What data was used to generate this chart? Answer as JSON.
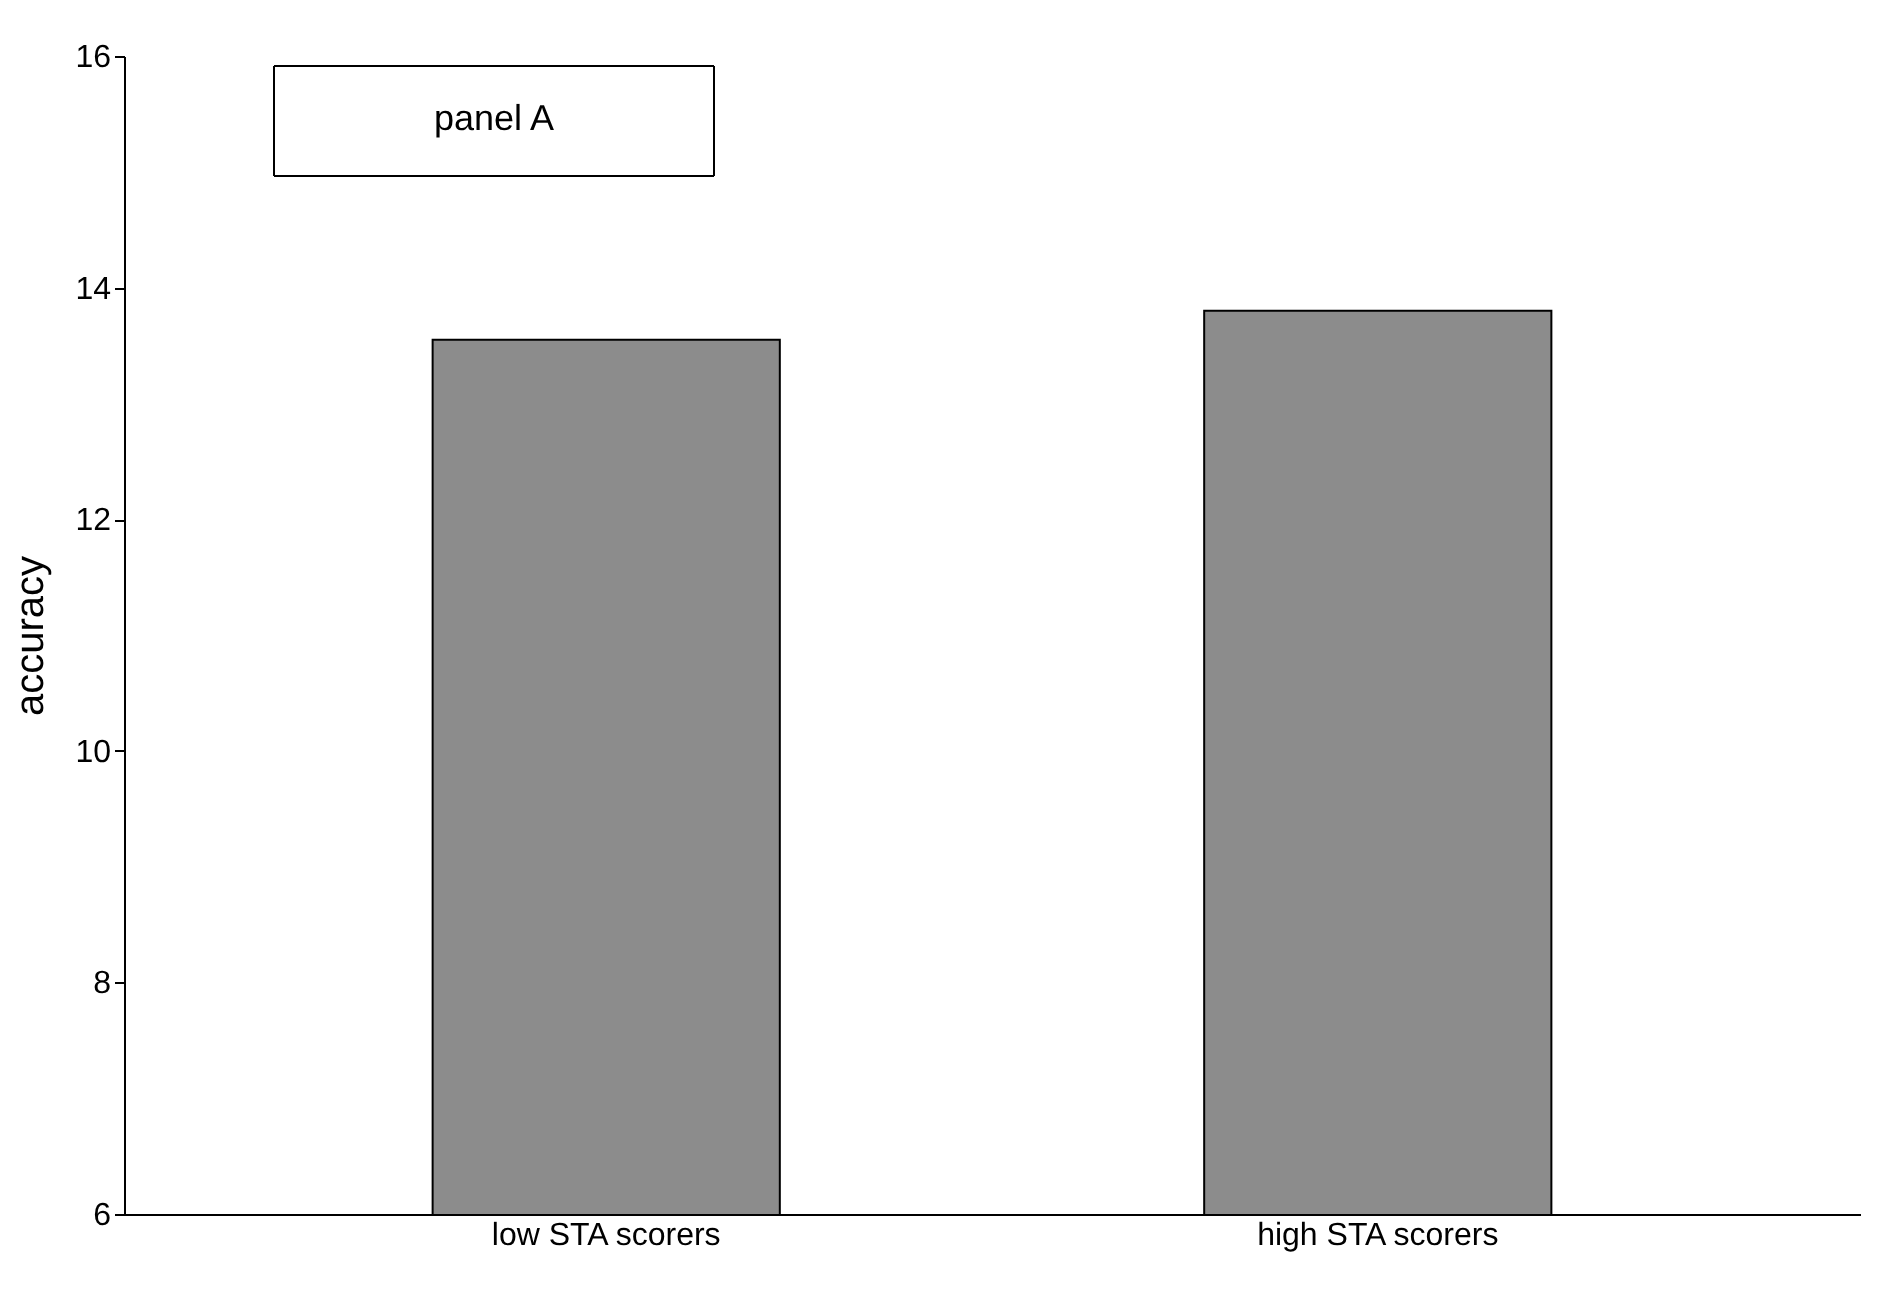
{
  "chart_data": {
    "type": "bar",
    "ylabel": "accuracy",
    "categories": [
      "low STA scorers",
      "high STA scorers"
    ],
    "values": [
      13.55,
      13.8
    ],
    "color": "#8c8c8c",
    "ylim": [
      6,
      16
    ],
    "yticks": [
      6,
      8,
      10,
      12,
      14,
      16
    ],
    "grid": false,
    "annotations": [
      "panel A"
    ]
  }
}
